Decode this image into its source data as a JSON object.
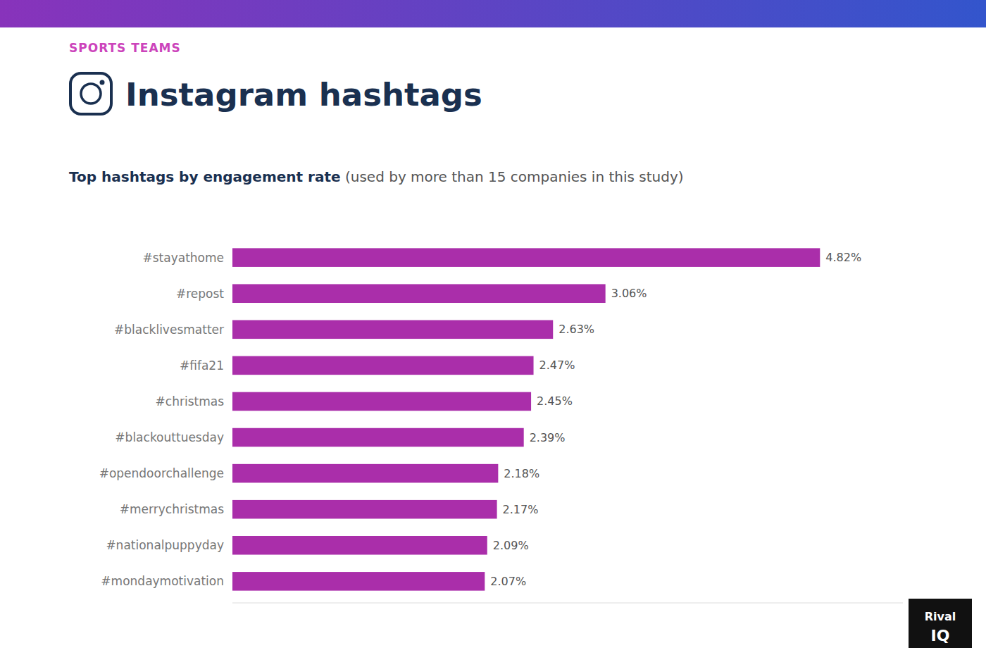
{
  "chart_data": {
    "type": "bar",
    "orientation": "horizontal",
    "title": "Instagram hashtags",
    "subtitle": "Top hashtags by engagement rate",
    "annotations": [
      "SPORTS TEAMS",
      " (used by more than 15 companies in this study)",
      "Rival",
      "IQ"
    ],
    "categories": [
      "#mondaymotivation",
      "#nationalpuppyday",
      "#merrychristmas",
      "#opendoorchallenge",
      "#blackouttuesday",
      "#christmas",
      "#fifa21",
      "#blacklivesmatter",
      "#repost",
      "#stayathome"
    ],
    "values": [
      2.07,
      2.09,
      2.17,
      2.18,
      2.39,
      2.45,
      2.47,
      2.63,
      3.06,
      4.82
    ],
    "value_labels": [
      "2.07%",
      "2.09%",
      "2.17%",
      "2.18%",
      "2.39%",
      "2.45%",
      "2.47%",
      "2.63%",
      "3.06%",
      "4.82%"
    ],
    "color": "#aa2eaa",
    "xlim": [
      0,
      5.5
    ],
    "data_labels": true,
    "grid": false,
    "tick_labels": "y"
  }
}
